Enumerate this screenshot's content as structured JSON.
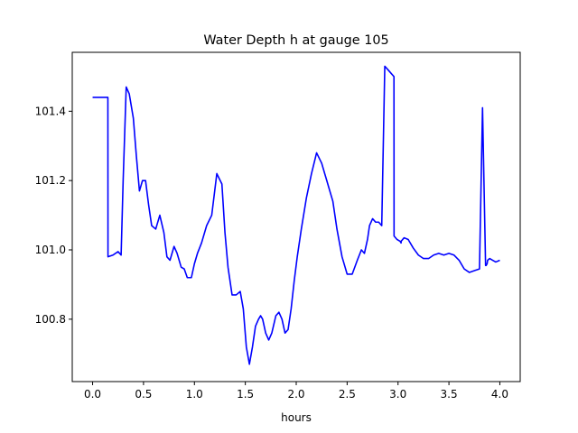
{
  "chart_data": {
    "type": "line",
    "title": "Water Depth h at gauge 105",
    "xlabel": "hours",
    "ylabel": "",
    "xlim": [
      -0.2,
      4.2
    ],
    "ylim": [
      100.62,
      101.57
    ],
    "xticks": [
      0.0,
      0.5,
      1.0,
      1.5,
      2.0,
      2.5,
      3.0,
      3.5,
      4.0
    ],
    "xtick_labels": [
      "0.0",
      "0.5",
      "1.0",
      "1.5",
      "2.0",
      "2.5",
      "3.0",
      "3.5",
      "4.0"
    ],
    "yticks": [
      100.8,
      101.0,
      101.2,
      101.4
    ],
    "ytick_labels": [
      "100.8",
      "101.0",
      "101.2",
      "101.4"
    ],
    "grid": false,
    "series": [
      {
        "color": "#0000ff",
        "x": [
          0.0,
          0.15,
          0.151,
          0.2,
          0.25,
          0.28,
          0.3,
          0.33,
          0.36,
          0.4,
          0.43,
          0.46,
          0.49,
          0.52,
          0.55,
          0.58,
          0.62,
          0.66,
          0.7,
          0.73,
          0.76,
          0.8,
          0.83,
          0.87,
          0.9,
          0.93,
          0.97,
          1.0,
          1.03,
          1.07,
          1.12,
          1.17,
          1.22,
          1.27,
          1.3,
          1.33,
          1.37,
          1.41,
          1.45,
          1.48,
          1.51,
          1.54,
          1.57,
          1.6,
          1.63,
          1.65,
          1.67,
          1.7,
          1.73,
          1.76,
          1.8,
          1.83,
          1.86,
          1.89,
          1.92,
          1.95,
          1.98,
          2.01,
          2.05,
          2.1,
          2.15,
          2.2,
          2.25,
          2.28,
          2.3,
          2.32,
          2.36,
          2.4,
          2.45,
          2.5,
          2.55,
          2.6,
          2.64,
          2.67,
          2.7,
          2.72,
          2.75,
          2.78,
          2.81,
          2.84,
          2.87,
          2.9,
          2.93,
          2.96,
          2.961,
          2.99,
          3.02,
          3.03,
          3.031,
          3.06,
          3.1,
          3.15,
          3.2,
          3.25,
          3.3,
          3.35,
          3.4,
          3.45,
          3.5,
          3.55,
          3.6,
          3.65,
          3.7,
          3.75,
          3.8,
          3.83,
          3.86,
          3.865,
          3.875,
          3.88,
          3.9,
          3.93,
          3.96,
          4.0
        ],
        "y": [
          101.44,
          101.44,
          100.98,
          100.985,
          100.995,
          100.985,
          101.2,
          101.47,
          101.45,
          101.38,
          101.27,
          101.17,
          101.2,
          101.2,
          101.13,
          101.07,
          101.06,
          101.1,
          101.05,
          100.98,
          100.97,
          101.01,
          100.99,
          100.95,
          100.945,
          100.92,
          100.92,
          100.96,
          100.99,
          101.02,
          101.07,
          101.1,
          101.22,
          101.19,
          101.05,
          100.95,
          100.87,
          100.87,
          100.88,
          100.83,
          100.72,
          100.67,
          100.72,
          100.78,
          100.8,
          100.81,
          100.8,
          100.76,
          100.74,
          100.76,
          100.81,
          100.82,
          100.8,
          100.76,
          100.77,
          100.83,
          100.91,
          100.98,
          101.06,
          101.15,
          101.22,
          101.28,
          101.25,
          101.22,
          101.2,
          101.18,
          101.14,
          101.06,
          100.98,
          100.93,
          100.93,
          100.97,
          101.0,
          100.99,
          101.03,
          101.07,
          101.09,
          101.08,
          101.08,
          101.07,
          101.53,
          101.52,
          101.51,
          101.5,
          101.04,
          101.03,
          101.025,
          101.02,
          101.025,
          101.035,
          101.03,
          101.005,
          100.985,
          100.975,
          100.975,
          100.985,
          100.99,
          100.985,
          100.99,
          100.985,
          100.97,
          100.945,
          100.935,
          100.94,
          100.945,
          101.41,
          100.955,
          100.955,
          100.96,
          100.97,
          100.975,
          100.97,
          100.965,
          100.97
        ]
      }
    ]
  }
}
